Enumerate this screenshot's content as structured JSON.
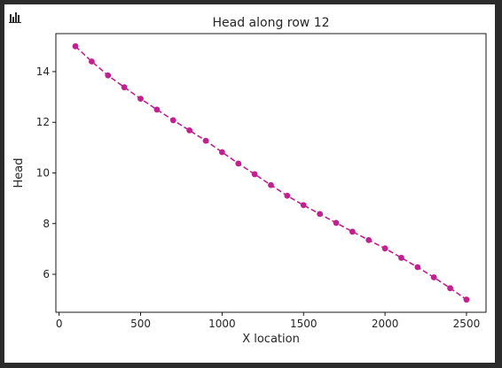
{
  "window": {
    "chart_icon": "bar-chart-icon"
  },
  "colors": {
    "series": "#c0218f",
    "axis": "#000000",
    "text": "#262626",
    "background": "#ffffff",
    "frame": "#2b2b2b"
  },
  "chart_data": {
    "type": "line",
    "title": "Head along row 12",
    "xlabel": "X location",
    "ylabel": "Head",
    "xlim": [
      -20,
      2620
    ],
    "ylim": [
      4.5,
      15.5
    ],
    "xticks": [
      0,
      500,
      1000,
      1500,
      2000,
      2500
    ],
    "yticks": [
      6,
      8,
      10,
      12,
      14
    ],
    "grid": false,
    "line_style": "dashed",
    "marker": "circle",
    "series": [
      {
        "x": [
          100,
          200,
          300,
          400,
          500,
          600,
          700,
          800,
          900,
          1000,
          1100,
          1200,
          1300,
          1400,
          1500,
          1600,
          1700,
          1800,
          1900,
          2000,
          2100,
          2200,
          2300,
          2400,
          2500
        ],
        "y": [
          15.0,
          14.4,
          13.85,
          13.38,
          12.93,
          12.5,
          12.08,
          11.68,
          11.27,
          10.82,
          10.37,
          9.95,
          9.52,
          9.1,
          8.73,
          8.38,
          8.03,
          7.68,
          7.35,
          7.02,
          6.65,
          6.28,
          5.88,
          5.45,
          5.0
        ]
      }
    ]
  }
}
